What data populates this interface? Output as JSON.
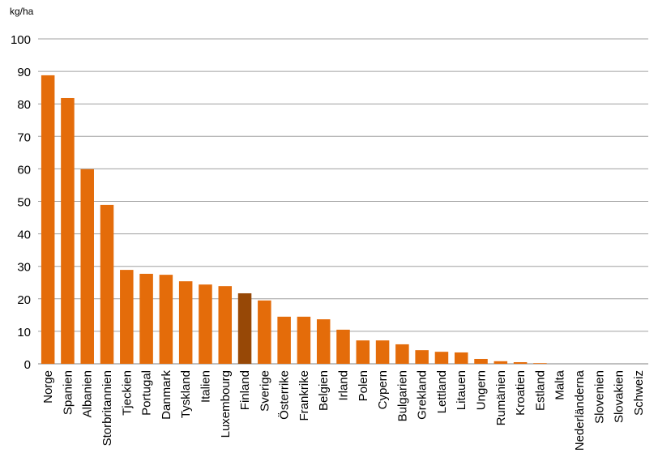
{
  "chart_data": {
    "type": "bar",
    "y_label": "kg/ha",
    "categories": [
      "Norge",
      "Spanien",
      "Albanien",
      "Storbritannien",
      "Tjeckien",
      "Portugal",
      "Danmark",
      "Tyskland",
      "Italien",
      "Luxembourg",
      "Finland",
      "Sverige",
      "Österrike",
      "Frankrike",
      "Belgien",
      "Irland",
      "Polen",
      "Cypern",
      "Bulgarien",
      "Grekland",
      "Lettland",
      "Litauen",
      "Ungern",
      "Rumänien",
      "Kroatien",
      "Estland",
      "Malta",
      "Nederländerna",
      "Slovenien",
      "Slovakien",
      "Schweiz"
    ],
    "values": [
      88.8,
      81.8,
      59.9,
      48.9,
      28.9,
      27.7,
      27.4,
      25.4,
      24.4,
      23.9,
      21.7,
      19.5,
      14.5,
      14.5,
      13.7,
      10.5,
      7.2,
      7.2,
      6.0,
      4.2,
      3.7,
      3.5,
      1.5,
      0.8,
      0.5,
      0.2,
      0,
      0,
      0,
      0,
      0
    ],
    "colors": [
      "#e46c0a",
      "#e46c0a",
      "#e46c0a",
      "#e46c0a",
      "#e46c0a",
      "#e46c0a",
      "#e46c0a",
      "#e46c0a",
      "#e46c0a",
      "#e46c0a",
      "#974806",
      "#e46c0a",
      "#e46c0a",
      "#e46c0a",
      "#e46c0a",
      "#e46c0a",
      "#e46c0a",
      "#e46c0a",
      "#e46c0a",
      "#e46c0a",
      "#e46c0a",
      "#e46c0a",
      "#e46c0a",
      "#e46c0a",
      "#e46c0a",
      "#e46c0a",
      "#e46c0a",
      "#e46c0a",
      "#e46c0a",
      "#e46c0a",
      "#e46c0a"
    ],
    "ylim": [
      0,
      100
    ],
    "yticks": [
      0,
      10,
      20,
      30,
      40,
      50,
      60,
      70,
      80,
      90,
      100
    ],
    "grid": true
  }
}
